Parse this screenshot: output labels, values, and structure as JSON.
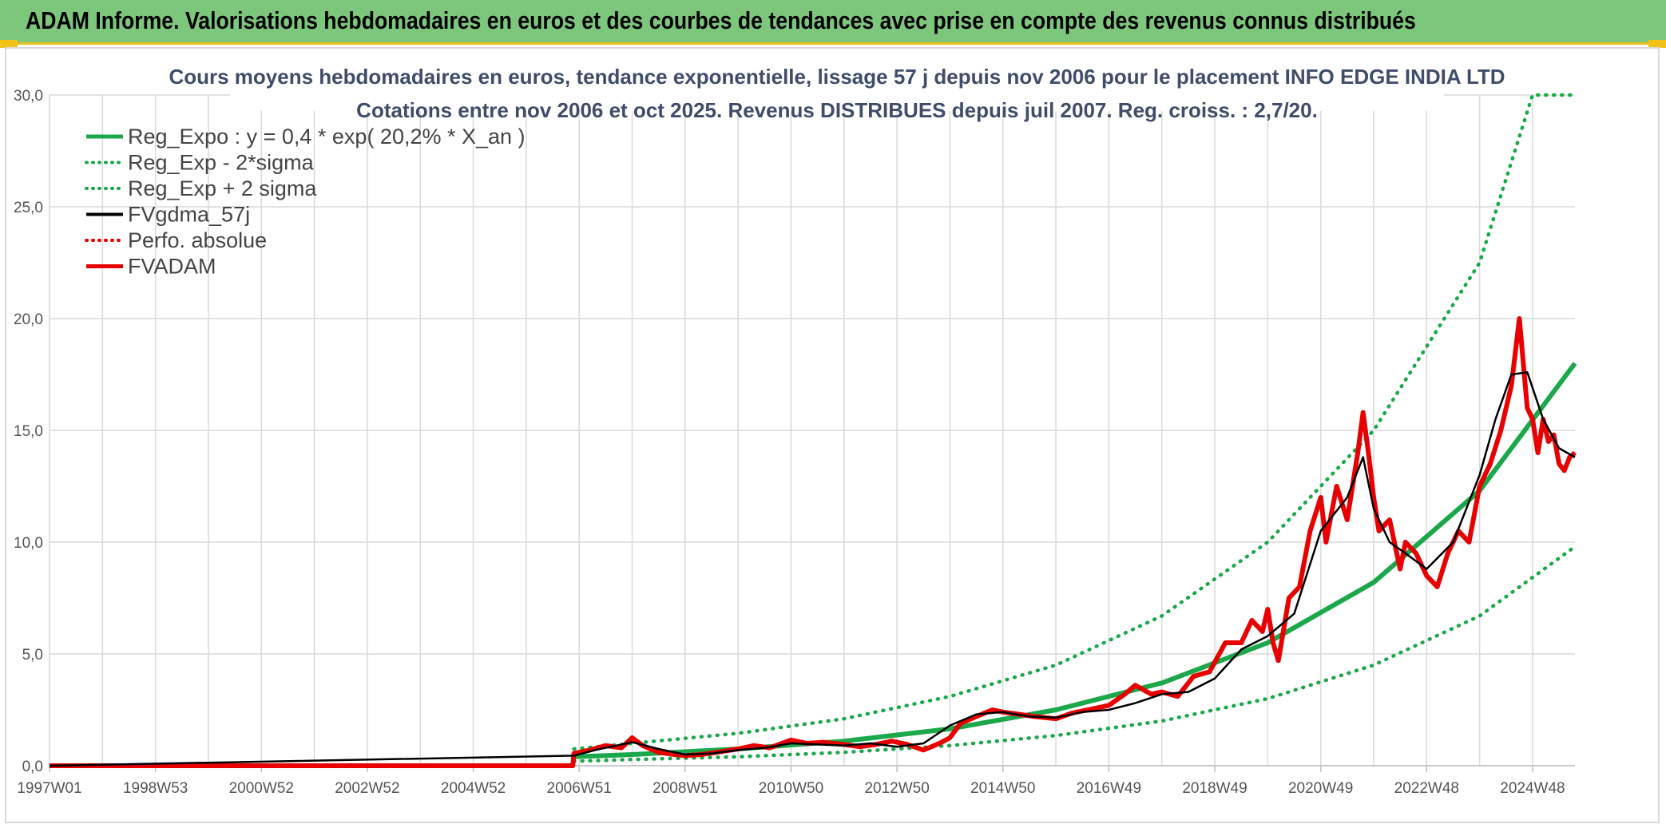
{
  "banner": {
    "title": "ADAM Informe. Valorisations hebdomadaires en euros et des courbes de tendances avec prise en compte des revenus connus distribués"
  },
  "colors": {
    "banner_bg": "#7dc77d",
    "reg_expo": "#1aa84a",
    "reg_band": "#1aa84a",
    "fvgdma": "#000000",
    "perfo": "#e00000",
    "fvadam": "#e80000"
  },
  "chart_data": {
    "type": "line",
    "title_lines": [
      "Cours moyens hebdomadaires en euros, tendance exponentielle, lissage 57 j depuis nov 2006 pour le placement INFO EDGE INDIA LTD",
      "Cotations entre nov 2006 et oct 2025. Revenus DISTRIBUES depuis juil 2007. Reg. croiss. : 2,7/20."
    ],
    "x_tick_labels": [
      "1997W01",
      "1998W53",
      "2000W52",
      "2002W52",
      "2004W52",
      "2006W51",
      "2008W51",
      "2010W50",
      "2012W50",
      "2014W50",
      "2016W49",
      "2018W49",
      "2020W49",
      "2022W48",
      "2024W48"
    ],
    "x_range": [
      1997.0,
      2025.8
    ],
    "ylim": [
      0,
      30
    ],
    "y_ticks": [
      "0,0",
      "5,0",
      "10,0",
      "15,0",
      "20,0",
      "25,0",
      "30,0"
    ],
    "legend_position": "top-left",
    "grid": true,
    "series": [
      {
        "name": "Reg_Expo : y = 0,4 * exp( 20,2% *  X_an )",
        "style": "solid-thick",
        "color": "#1aa84a",
        "x": [
          2006.9,
          2008,
          2010,
          2012,
          2014,
          2016,
          2018,
          2020,
          2022,
          2024,
          2025.8
        ],
        "y": [
          0.4,
          0.5,
          0.75,
          1.1,
          1.65,
          2.5,
          3.7,
          5.5,
          8.2,
          12.3,
          18.0
        ]
      },
      {
        "name": "Reg_Exp - 2*sigma",
        "style": "dotted",
        "color": "#1aa84a",
        "x": [
          2006.9,
          2008,
          2010,
          2012,
          2014,
          2016,
          2018,
          2020,
          2022,
          2024,
          2025.8
        ],
        "y": [
          0.2,
          0.28,
          0.4,
          0.6,
          0.9,
          1.35,
          2.0,
          3.0,
          4.5,
          6.7,
          9.8
        ]
      },
      {
        "name": "Reg_Exp + 2 sigma",
        "style": "dotted",
        "color": "#1aa84a",
        "x": [
          2006.9,
          2008,
          2010,
          2012,
          2014,
          2016,
          2018,
          2020,
          2022,
          2024,
          2025.0,
          2025.8
        ],
        "y": [
          0.75,
          1.0,
          1.45,
          2.1,
          3.1,
          4.5,
          6.7,
          10.0,
          15.0,
          22.5,
          30.0,
          30.0
        ]
      },
      {
        "name": "FVgdma_57j",
        "style": "solid",
        "color": "#000000",
        "x": [
          1997.0,
          2006.9,
          2007.3,
          2007.7,
          2008.0,
          2008.5,
          2009.0,
          2009.5,
          2010.0,
          2010.5,
          2011.0,
          2011.5,
          2012.0,
          2012.5,
          2013.0,
          2013.5,
          2014.0,
          2014.5,
          2015.0,
          2015.5,
          2016.0,
          2016.5,
          2017.0,
          2017.5,
          2018.0,
          2018.5,
          2019.0,
          2019.5,
          2020.0,
          2020.5,
          2021.0,
          2021.5,
          2021.8,
          2022.0,
          2022.3,
          2022.6,
          2023.0,
          2023.5,
          2024.0,
          2024.3,
          2024.6,
          2024.9,
          2025.2,
          2025.5,
          2025.8
        ],
        "y": [
          0,
          0.45,
          0.7,
          0.9,
          1.05,
          0.75,
          0.5,
          0.55,
          0.7,
          0.8,
          1.0,
          0.95,
          0.9,
          1.0,
          0.85,
          1.0,
          1.8,
          2.3,
          2.4,
          2.2,
          2.15,
          2.4,
          2.5,
          2.8,
          3.2,
          3.3,
          3.9,
          5.2,
          5.8,
          6.8,
          10.5,
          12.0,
          13.8,
          11.5,
          10.0,
          9.5,
          8.8,
          10.0,
          13.0,
          15.5,
          17.5,
          17.6,
          15.5,
          14.2,
          13.8
        ]
      },
      {
        "name": "Perfo. absolue",
        "style": "dotted",
        "color": "#e00000",
        "x": [],
        "y": []
      },
      {
        "name": "FVADAM",
        "style": "solid-thick",
        "color": "#e80000",
        "x": [
          1997.0,
          2006.88,
          2006.9,
          2007.2,
          2007.5,
          2007.8,
          2008.0,
          2008.2,
          2008.5,
          2008.8,
          2009.0,
          2009.3,
          2009.6,
          2010.0,
          2010.3,
          2010.6,
          2011.0,
          2011.3,
          2011.6,
          2012.0,
          2012.3,
          2012.6,
          2012.9,
          2013.2,
          2013.5,
          2013.8,
          2014.0,
          2014.2,
          2014.5,
          2014.8,
          2015.0,
          2015.3,
          2015.6,
          2016.0,
          2016.3,
          2016.6,
          2017.0,
          2017.3,
          2017.5,
          2017.8,
          2018.0,
          2018.3,
          2018.6,
          2018.9,
          2019.2,
          2019.5,
          2019.7,
          2019.9,
          2020.0,
          2020.1,
          2020.2,
          2020.4,
          2020.6,
          2020.8,
          2021.0,
          2021.1,
          2021.3,
          2021.5,
          2021.7,
          2021.8,
          2021.9,
          2022.0,
          2022.1,
          2022.3,
          2022.5,
          2022.6,
          2022.8,
          2023.0,
          2023.2,
          2023.4,
          2023.6,
          2023.8,
          2024.0,
          2024.2,
          2024.4,
          2024.6,
          2024.75,
          2024.9,
          2025.0,
          2025.1,
          2025.2,
          2025.3,
          2025.4,
          2025.5,
          2025.6,
          2025.7,
          2025.8
        ],
        "y": [
          0,
          0,
          0.55,
          0.7,
          0.9,
          0.8,
          1.25,
          0.9,
          0.6,
          0.5,
          0.45,
          0.5,
          0.6,
          0.75,
          0.9,
          0.8,
          1.15,
          1.0,
          1.05,
          0.95,
          0.85,
          0.95,
          1.1,
          0.95,
          0.7,
          1.0,
          1.25,
          1.9,
          2.2,
          2.5,
          2.4,
          2.3,
          2.2,
          2.1,
          2.35,
          2.5,
          2.7,
          3.2,
          3.6,
          3.2,
          3.3,
          3.1,
          4.0,
          4.2,
          5.5,
          5.5,
          6.5,
          6.0,
          7.0,
          5.5,
          4.7,
          7.5,
          8.0,
          10.5,
          12.0,
          10.0,
          12.5,
          11.0,
          14.0,
          15.8,
          14.0,
          12.0,
          10.5,
          11.0,
          8.8,
          10.0,
          9.5,
          8.5,
          8.0,
          9.5,
          10.5,
          10.0,
          12.5,
          13.5,
          15.0,
          17.0,
          20.0,
          16.0,
          15.5,
          14.0,
          15.5,
          14.5,
          14.8,
          13.5,
          13.2,
          13.8,
          14.0
        ]
      }
    ]
  }
}
